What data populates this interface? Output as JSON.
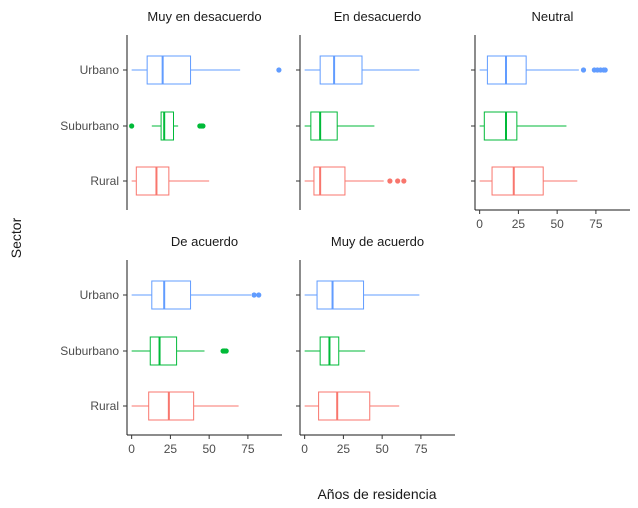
{
  "chart_data": {
    "type": "boxplot",
    "xlabel": "Años de residencia",
    "ylabel": "Sector",
    "categories": [
      "Urbano",
      "Suburbano",
      "Rural"
    ],
    "colors": {
      "Urbano": "#619CFF",
      "Suburbano": "#00BA38",
      "Rural": "#F8766D"
    },
    "xlim": [
      -3,
      97
    ],
    "xticks": [
      0,
      25,
      50,
      75
    ],
    "facet_x_axis_shown_on": [
      "Neutral",
      "De acuerdo",
      "Muy de acuerdo"
    ],
    "facets": [
      {
        "name": "Muy en desacuerdo",
        "boxes": {
          "Urbano": {
            "whisker_low": 0,
            "q1": 10,
            "median": 20,
            "q3": 38,
            "whisker_high": 70,
            "outliers": [
              95
            ]
          },
          "Suburbano": {
            "whisker_low": 13,
            "q1": 19,
            "median": 21,
            "q3": 27,
            "whisker_high": 30,
            "outliers": [
              0,
              44,
              45,
              46
            ]
          },
          "Rural": {
            "whisker_low": 0,
            "q1": 3,
            "median": 16,
            "q3": 24,
            "whisker_high": 50,
            "outliers": []
          }
        }
      },
      {
        "name": "En desacuerdo",
        "boxes": {
          "Urbano": {
            "whisker_low": 0,
            "q1": 10,
            "median": 19,
            "q3": 37,
            "whisker_high": 74,
            "outliers": []
          },
          "Suburbano": {
            "whisker_low": 0,
            "q1": 4,
            "median": 10,
            "q3": 21,
            "whisker_high": 45,
            "outliers": []
          },
          "Rural": {
            "whisker_low": 0,
            "q1": 6,
            "median": 10,
            "q3": 26,
            "whisker_high": 51,
            "outliers": [
              55,
              60,
              64
            ]
          }
        }
      },
      {
        "name": "Neutral",
        "boxes": {
          "Urbano": {
            "whisker_low": 0,
            "q1": 5,
            "median": 17,
            "q3": 30,
            "whisker_high": 64,
            "outliers": [
              67,
              74,
              76,
              78,
              80,
              81
            ]
          },
          "Suburbano": {
            "whisker_low": 0,
            "q1": 3,
            "median": 17,
            "q3": 24,
            "whisker_high": 56,
            "outliers": []
          },
          "Rural": {
            "whisker_low": 0,
            "q1": 8,
            "median": 22,
            "q3": 41,
            "whisker_high": 63,
            "outliers": []
          }
        }
      },
      {
        "name": "De acuerdo",
        "boxes": {
          "Urbano": {
            "whisker_low": 0,
            "q1": 13,
            "median": 21,
            "q3": 38,
            "whisker_high": 77,
            "outliers": [
              79,
              82
            ]
          },
          "Suburbano": {
            "whisker_low": 0,
            "q1": 12,
            "median": 18,
            "q3": 29,
            "whisker_high": 47,
            "outliers": [
              59,
              60,
              61
            ]
          },
          "Rural": {
            "whisker_low": 0,
            "q1": 11,
            "median": 24,
            "q3": 40,
            "whisker_high": 69,
            "outliers": []
          }
        }
      },
      {
        "name": "Muy de acuerdo",
        "boxes": {
          "Urbano": {
            "whisker_low": 0,
            "q1": 8,
            "median": 18,
            "q3": 38,
            "whisker_high": 74,
            "outliers": []
          },
          "Suburbano": {
            "whisker_low": 0,
            "q1": 10,
            "median": 16,
            "q3": 22,
            "whisker_high": 39,
            "outliers": []
          },
          "Rural": {
            "whisker_low": 0,
            "q1": 9,
            "median": 21,
            "q3": 42,
            "whisker_high": 61,
            "outliers": []
          }
        }
      }
    ]
  }
}
